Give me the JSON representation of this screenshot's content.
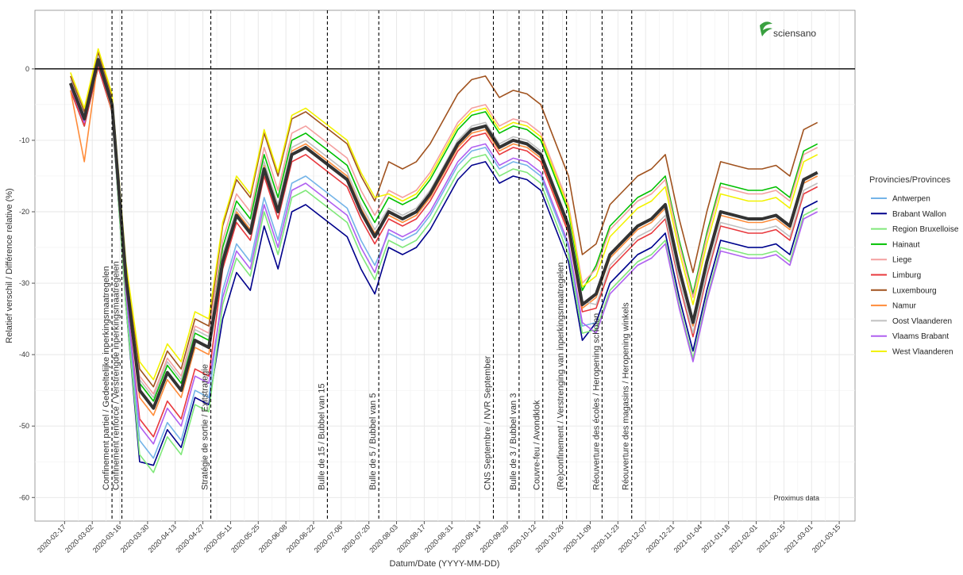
{
  "chart_data": {
    "type": "line",
    "x_label": "Datum/Date (YYYY-MM-DD)",
    "y_label": "Relatief verschil / Différence relative (%)",
    "legend_title": "Provincies/Provinces",
    "legend_position": "right",
    "annotation": "Proximus data",
    "logo": "sciensano",
    "grid": true,
    "hline": 0,
    "xlim": [
      "2020-02-02",
      "2021-03-23"
    ],
    "ylim": [
      -63.3,
      8.2
    ],
    "yticks": [
      0,
      -10,
      -20,
      -30,
      -40,
      -50,
      -60
    ],
    "xticks": [
      "2020-02-17",
      "2020-03-02",
      "2020-03-16",
      "2020-03-30",
      "2020-04-13",
      "2020-04-27",
      "2020-05-11",
      "2020-05-25",
      "2020-06-08",
      "2020-06-22",
      "2020-07-06",
      "2020-07-20",
      "2020-08-03",
      "2020-08-17",
      "2020-08-31",
      "2020-09-14",
      "2020-09-28",
      "2020-10-12",
      "2020-10-26",
      "2020-11-09",
      "2020-11-23",
      "2020-12-07",
      "2020-12-21",
      "2021-01-04",
      "2021-01-18",
      "2021-02-01",
      "2021-02-15",
      "2021-03-01",
      "2021-03-15"
    ],
    "events": [
      {
        "date": "2020-03-12",
        "label": "Confinement partiel / Gedeeltelijke inperkingsmaatregelen"
      },
      {
        "date": "2020-03-17",
        "label": "Confinement renforcé / Verstrengde inperkingsmaatregelen"
      },
      {
        "date": "2020-05-01",
        "label": "Stratégie de sortie / Exitstrategie"
      },
      {
        "date": "2020-06-29",
        "label": "Bulle de 15 / Bubbel van 15"
      },
      {
        "date": "2020-07-25",
        "label": "Bulle de 5 / Bubbel van 5"
      },
      {
        "date": "2020-09-21",
        "label": "CNS Septembre / NVR September"
      },
      {
        "date": "2020-10-04",
        "label": "Bulle de 3 / Bubbel van 3"
      },
      {
        "date": "2020-10-16",
        "label": "Couvre-feu / Avondklok"
      },
      {
        "date": "2020-10-28",
        "label": "(Re)confinement / Verstrenging van inperkingsmaatregelen"
      },
      {
        "date": "2020-11-15",
        "label": "Réouverture des écoles / Heropening scholen"
      },
      {
        "date": "2020-11-30",
        "label": "Réouverture des magasins / Heropening winkels"
      }
    ],
    "x": [
      "2020-02-20",
      "2020-02-27",
      "2020-03-05",
      "2020-03-12",
      "2020-03-19",
      "2020-03-26",
      "2020-04-02",
      "2020-04-09",
      "2020-04-16",
      "2020-04-23",
      "2020-04-30",
      "2020-05-07",
      "2020-05-14",
      "2020-05-21",
      "2020-05-28",
      "2020-06-04",
      "2020-06-11",
      "2020-06-18",
      "2020-06-25",
      "2020-07-02",
      "2020-07-09",
      "2020-07-16",
      "2020-07-23",
      "2020-07-30",
      "2020-08-06",
      "2020-08-13",
      "2020-08-20",
      "2020-08-27",
      "2020-09-03",
      "2020-09-10",
      "2020-09-17",
      "2020-09-24",
      "2020-10-01",
      "2020-10-08",
      "2020-10-15",
      "2020-10-22",
      "2020-10-29",
      "2020-11-05",
      "2020-11-12",
      "2020-11-19",
      "2020-11-26",
      "2020-12-03",
      "2020-12-10",
      "2020-12-17",
      "2020-12-24",
      "2020-12-31",
      "2021-01-07",
      "2021-01-14",
      "2021-01-21",
      "2021-01-28",
      "2021-02-04",
      "2021-02-11",
      "2021-02-18",
      "2021-02-25",
      "2021-03-04"
    ],
    "series": [
      {
        "name": "Antwerpen",
        "color": "#74b4e8",
        "values": [
          -2,
          -7,
          1.3,
          -5,
          -32,
          -52,
          -54.5,
          -49.5,
          -52,
          -45,
          -46,
          -31,
          -24.5,
          -27,
          -18,
          -24,
          -16,
          -15,
          -16.5,
          -18,
          -19.5,
          -24,
          -27.5,
          -23,
          -24,
          -23,
          -20.5,
          -17,
          -13.5,
          -11.5,
          -11,
          -14,
          -13,
          -13.5,
          -15,
          -20,
          -25,
          -36,
          -35.5,
          -30,
          -28,
          -26,
          -25,
          -23,
          -32,
          -39.5,
          -31,
          -24,
          -24.5,
          -25,
          -25,
          -24.5,
          -26,
          -19.5,
          -18.5
        ]
      },
      {
        "name": "Brabant Wallon",
        "color": "#00008b",
        "values": [
          -3,
          -8,
          0.3,
          -6,
          -33,
          -55,
          -55.5,
          -50.5,
          -53,
          -46,
          -47,
          -35,
          -28.5,
          -31,
          -22,
          -28,
          -20,
          -19,
          -20.5,
          -22,
          -23.5,
          -28,
          -31.5,
          -25,
          -26,
          -25,
          -22.5,
          -19,
          -15.5,
          -13.5,
          -13,
          -16,
          -15,
          -15.5,
          -17,
          -22,
          -27,
          -38,
          -35.5,
          -30,
          -28,
          -26,
          -25,
          -23,
          -32,
          -39.5,
          -31,
          -24,
          -24.5,
          -25,
          -25,
          -24.5,
          -26,
          -19.5,
          -18.5
        ]
      },
      {
        "name": "Region Bruxelloise",
        "color": "#80e87a",
        "values": [
          -3,
          -8,
          0.3,
          -6,
          -33,
          -54,
          -56.5,
          -51.5,
          -54,
          -47,
          -48,
          -33,
          -26.5,
          -29,
          -20,
          -26,
          -18,
          -17,
          -18.5,
          -20,
          -21.5,
          -26,
          -29.5,
          -24,
          -25,
          -24,
          -21.5,
          -18,
          -14.5,
          -12.5,
          -12,
          -15,
          -14,
          -14.5,
          -16,
          -21,
          -26,
          -37,
          -36.5,
          -31,
          -29,
          -27,
          -26,
          -24,
          -33,
          -40.5,
          -32,
          -25,
          -25.5,
          -26,
          -26,
          -25.5,
          -27,
          -20.5,
          -19.5
        ]
      },
      {
        "name": "Hainaut",
        "color": "#00c000",
        "values": [
          -2,
          -7,
          1.3,
          -5,
          -29,
          -44,
          -46.5,
          -41.5,
          -44,
          -37,
          -38,
          -25,
          -18.5,
          -21,
          -12,
          -18,
          -10,
          -9,
          -10.5,
          -12,
          -13.5,
          -18,
          -21.5,
          -18,
          -19,
          -18,
          -15.5,
          -12,
          -8.5,
          -6.5,
          -6,
          -9,
          -8,
          -8.5,
          -10,
          -15,
          -20,
          -31,
          -27.5,
          -22,
          -20,
          -18,
          -17,
          -15,
          -24,
          -31.5,
          -23,
          -16,
          -16.5,
          -17,
          -17,
          -16.5,
          -18,
          -11.5,
          -10.5
        ]
      },
      {
        "name": "Liege",
        "color": "#f4a0a0",
        "values": [
          -2,
          -7,
          1.3,
          -5,
          -28,
          -43,
          -45.5,
          -40.5,
          -43,
          -36,
          -37,
          -24,
          -17.5,
          -20,
          -11,
          -17,
          -9,
          -8,
          -9.5,
          -11,
          -12.5,
          -17,
          -20.5,
          -17,
          -18,
          -17,
          -14.5,
          -11,
          -7.5,
          -5.5,
          -5,
          -8,
          -7,
          -7.5,
          -9,
          -14,
          -19,
          -30,
          -28,
          -22.5,
          -20.5,
          -18.5,
          -17.5,
          -15.5,
          -24.5,
          -32,
          -23.5,
          -16.5,
          -17,
          -17.5,
          -17.5,
          -17,
          -18.5,
          -12,
          -11
        ]
      },
      {
        "name": "Limburg",
        "color": "#e8383d",
        "values": [
          -3,
          -8,
          0.3,
          -6,
          -31,
          -49,
          -51.5,
          -46.5,
          -49,
          -42,
          -43,
          -28,
          -21.5,
          -24,
          -15,
          -21,
          -13,
          -12,
          -13.5,
          -15,
          -16.5,
          -21,
          -24.5,
          -21,
          -22,
          -21,
          -18.5,
          -15,
          -11.5,
          -9.5,
          -9,
          -12,
          -11,
          -11.5,
          -13,
          -18,
          -23,
          -34,
          -33.5,
          -28,
          -26,
          -24,
          -23,
          -21,
          -30,
          -37.5,
          -29,
          -22,
          -22.5,
          -23,
          -23,
          -22.5,
          -24,
          -17.5,
          -16.5
        ]
      },
      {
        "name": "Luxembourg",
        "color": "#a0521e",
        "values": [
          -1,
          -6,
          2.3,
          -4,
          -28,
          -42,
          -44.5,
          -39.5,
          -42,
          -35,
          -36,
          -22,
          -15.5,
          -18,
          -9,
          -15,
          -7,
          -6,
          -7.5,
          -9,
          -10.5,
          -15,
          -18.5,
          -13,
          -14,
          -13,
          -10.5,
          -7,
          -3.5,
          -1.5,
          -1,
          -4,
          -3,
          -3.5,
          -5,
          -10,
          -15,
          -26,
          -24.5,
          -19,
          -17,
          -15,
          -14,
          -12,
          -21,
          -28.5,
          -20,
          -13,
          -13.5,
          -14,
          -14,
          -13.5,
          -15,
          -8.5,
          -7.5
        ]
      },
      {
        "name": "Namur",
        "color": "#ff8c3a",
        "values": [
          -3,
          -13,
          1.3,
          -6,
          -29,
          -46,
          -48.5,
          -43.5,
          -46,
          -39,
          -40,
          -26.5,
          -20,
          -22.5,
          -13.5,
          -19.5,
          -11.5,
          -10.5,
          -12,
          -13.5,
          -15,
          -19.5,
          -23,
          -20.5,
          -21.5,
          -20.5,
          -18,
          -14.5,
          -11,
          -9,
          -8.5,
          -11.5,
          -10.5,
          -11,
          -12.5,
          -17.5,
          -22.5,
          -33.5,
          -32,
          -26.5,
          -24.5,
          -22.5,
          -21.5,
          -19.5,
          -28.5,
          -36,
          -27.5,
          -20.5,
          -21,
          -21.5,
          -21.5,
          -21,
          -22.5,
          -16,
          -15
        ]
      },
      {
        "name": "Oost Vlaanderen",
        "color": "#c0c0c0",
        "values": [
          -1.5,
          -6.5,
          1.8,
          -4.5,
          -28.5,
          -43.5,
          -46,
          -41,
          -43.5,
          -36.5,
          -37.5,
          -26,
          -19.5,
          -22,
          -13,
          -19,
          -11,
          -10,
          -11.5,
          -13,
          -14.5,
          -19,
          -22.5,
          -19.5,
          -20.5,
          -19.5,
          -17,
          -13.5,
          -10,
          -8,
          -7.5,
          -10.5,
          -9.5,
          -10,
          -11.5,
          -16.5,
          -21.5,
          -32.5,
          -33,
          -27.5,
          -25.5,
          -23.5,
          -22.5,
          -20.5,
          -29.5,
          -37,
          -28.5,
          -21.5,
          -22,
          -22.5,
          -22.5,
          -22,
          -23.5,
          -17,
          -16
        ]
      },
      {
        "name": "Vlaams Brabant",
        "color": "#b060f0",
        "values": [
          -2.5,
          -7.5,
          0.8,
          -5.5,
          -31,
          -50,
          -52.5,
          -47.5,
          -50,
          -43,
          -44,
          -32,
          -25.5,
          -28,
          -19,
          -25,
          -17,
          -16,
          -17.5,
          -19,
          -20.5,
          -25,
          -28.5,
          -22.5,
          -23.5,
          -22.5,
          -20,
          -16.5,
          -13,
          -11,
          -10.5,
          -13.5,
          -12.5,
          -13,
          -14.5,
          -19.5,
          -24.5,
          -35.5,
          -37,
          -31.5,
          -29.5,
          -27.5,
          -26.5,
          -24.5,
          -33.5,
          -41,
          -32.5,
          -25.5,
          -26,
          -26.5,
          -26.5,
          -26,
          -27.5,
          -21,
          -20
        ]
      },
      {
        "name": "West Vlaanderen",
        "color": "#f2f200",
        "values": [
          -0.5,
          -5.5,
          2.8,
          -3.5,
          -27,
          -41,
          -43.5,
          -38.5,
          -41,
          -34,
          -35,
          -21.5,
          -15,
          -17.5,
          -8.5,
          -14.5,
          -6.5,
          -5.5,
          -7,
          -8.5,
          -10,
          -14.5,
          -18,
          -17.5,
          -18.5,
          -17.5,
          -15,
          -11.5,
          -8,
          -6,
          -5.5,
          -8.5,
          -7.5,
          -8,
          -9.5,
          -14.5,
          -19.5,
          -30.5,
          -29,
          -23.5,
          -21.5,
          -19.5,
          -18.5,
          -16.5,
          -25.5,
          -33,
          -24.5,
          -17.5,
          -18,
          -18.5,
          -18.5,
          -18,
          -19.5,
          -13,
          -12
        ]
      }
    ],
    "average": {
      "color": "#333333",
      "values": [
        -2,
        -7,
        1.3,
        -5,
        -29,
        -45,
        -47.5,
        -42.5,
        -45,
        -38,
        -39,
        -27,
        -20.5,
        -23,
        -14,
        -20,
        -12,
        -11,
        -12.5,
        -14,
        -15.5,
        -20,
        -23.5,
        -20,
        -21,
        -20,
        -17.5,
        -14,
        -10.5,
        -8.5,
        -8,
        -11,
        -10,
        -10.5,
        -12,
        -17,
        -22,
        -33,
        -31.5,
        -26,
        -24,
        -22,
        -21,
        -19,
        -28,
        -35.5,
        -27,
        -20,
        -20.5,
        -21,
        -21,
        -20.5,
        -22,
        -15.5,
        -14.5
      ]
    }
  }
}
